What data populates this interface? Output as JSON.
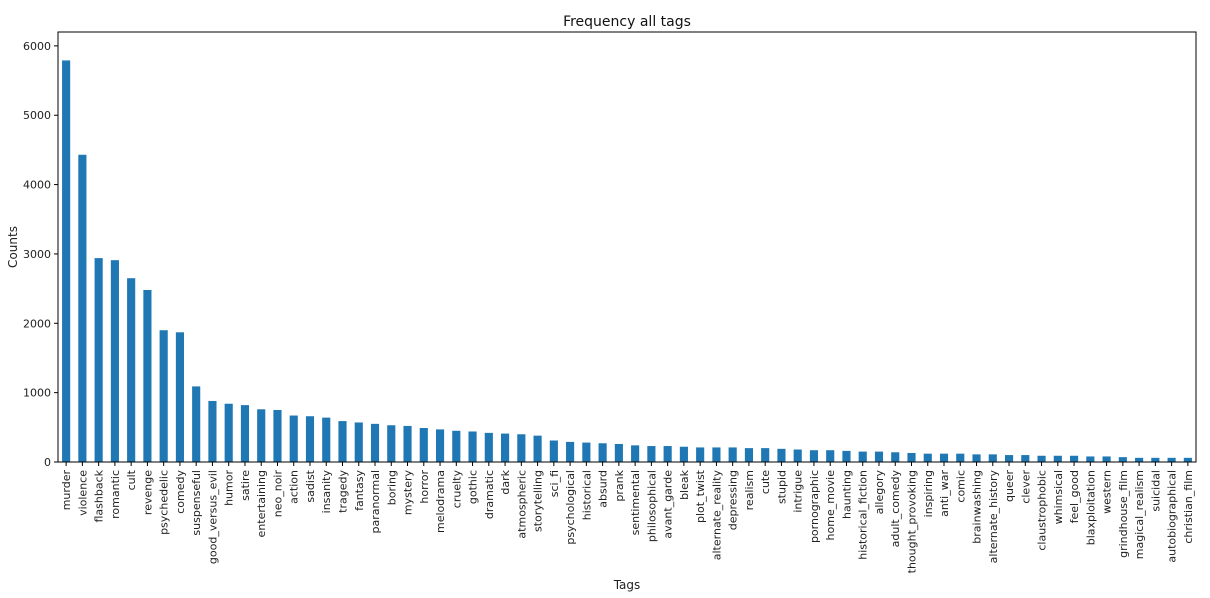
{
  "chart_data": {
    "type": "bar",
    "title": "Frequency all tags",
    "xlabel": "Tags",
    "ylabel": "Counts",
    "ylim": [
      0,
      6200
    ],
    "yticks": [
      0,
      1000,
      2000,
      3000,
      4000,
      5000,
      6000
    ],
    "grid": false,
    "bar_color": "#1f77b4",
    "categories": [
      "murder",
      "violence",
      "flashback",
      "romantic",
      "cult",
      "revenge",
      "psychedelic",
      "comedy",
      "suspenseful",
      "good_versus_evil",
      "humor",
      "satire",
      "entertaining",
      "neo_noir",
      "action",
      "sadist",
      "insanity",
      "tragedy",
      "fantasy",
      "paranormal",
      "boring",
      "mystery",
      "horror",
      "melodrama",
      "cruelty",
      "gothic",
      "dramatic",
      "dark",
      "atmospheric",
      "storytelling",
      "sci_fi",
      "psychological",
      "historical",
      "absurd",
      "prank",
      "sentimental",
      "philosophical",
      "avant_garde",
      "bleak",
      "plot_twist",
      "alternate_reality",
      "depressing",
      "realism",
      "cute",
      "stupid",
      "intrigue",
      "pornographic",
      "home_movie",
      "haunting",
      "historical_fiction",
      "allegory",
      "adult_comedy",
      "thought_provoking",
      "inspiring",
      "anti_war",
      "comic",
      "brainwashing",
      "alternate_history",
      "queer",
      "clever",
      "claustrophobic",
      "whimsical",
      "feel_good",
      "blaxploitation",
      "western",
      "grindhouse_film",
      "magical_realism",
      "suicidal",
      "autobiographical",
      "christian_film"
    ],
    "values": [
      5790,
      4430,
      2940,
      2910,
      2650,
      2480,
      1900,
      1870,
      1090,
      880,
      840,
      820,
      760,
      750,
      670,
      660,
      640,
      590,
      570,
      550,
      530,
      520,
      490,
      470,
      450,
      440,
      420,
      410,
      400,
      380,
      310,
      290,
      280,
      270,
      260,
      240,
      230,
      230,
      220,
      210,
      210,
      210,
      200,
      200,
      190,
      180,
      170,
      170,
      160,
      150,
      150,
      140,
      130,
      120,
      120,
      120,
      110,
      110,
      100,
      100,
      90,
      90,
      90,
      80,
      80,
      70,
      60,
      60,
      60,
      60
    ]
  }
}
